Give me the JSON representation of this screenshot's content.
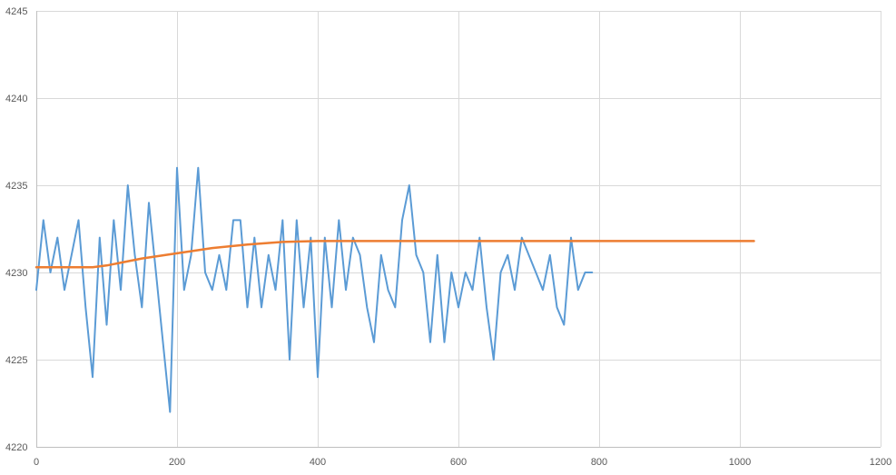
{
  "chart_data": {
    "type": "line",
    "title": "",
    "xlabel": "",
    "ylabel": "",
    "xlim": [
      0,
      1200
    ],
    "ylim": [
      4220,
      4245
    ],
    "x_ticks": [
      0,
      200,
      400,
      600,
      800,
      1000,
      1200
    ],
    "y_ticks": [
      4220,
      4225,
      4230,
      4235,
      4240,
      4245
    ],
    "x_tick_labels": [
      "0",
      "200",
      "400",
      "600",
      "800",
      "1000",
      "1200"
    ],
    "y_tick_labels": [
      "4220",
      "4225",
      "4230",
      "4235",
      "4240",
      "4245"
    ],
    "grid": true,
    "legend": "none",
    "series": [
      {
        "color": "#5b9bd5",
        "x_start": 0,
        "x_step": 10,
        "values": [
          4229,
          4233,
          4230,
          4232,
          4229,
          4231,
          4233,
          4228,
          4224,
          4232,
          4227,
          4233,
          4229,
          4235,
          4231,
          4228,
          4234,
          4230,
          4226,
          4222,
          4236,
          4229,
          4231,
          4236,
          4230,
          4229,
          4231,
          4229,
          4233,
          4233,
          4228,
          4232,
          4228,
          4231,
          4229,
          4233,
          4225,
          4233,
          4228,
          4232,
          4224,
          4232,
          4228,
          4233,
          4229,
          4232,
          4231,
          4228,
          4226,
          4231,
          4229,
          4228,
          4233,
          4235,
          4231,
          4230,
          4226,
          4231,
          4226,
          4230,
          4228,
          4230,
          4229,
          4232,
          4228,
          4225,
          4230,
          4231,
          4229,
          4232,
          4231,
          4230,
          4229,
          4231,
          4228,
          4227,
          4232,
          4229,
          4230,
          4230
        ]
      },
      {
        "color": "#ed7d31",
        "x": [
          0,
          80,
          100,
          150,
          200,
          250,
          300,
          350,
          400,
          500,
          1020
        ],
        "values": [
          4230.3,
          4230.3,
          4230.4,
          4230.8,
          4231.1,
          4231.4,
          4231.6,
          4231.75,
          4231.8,
          4231.8,
          4231.8
        ]
      }
    ]
  }
}
